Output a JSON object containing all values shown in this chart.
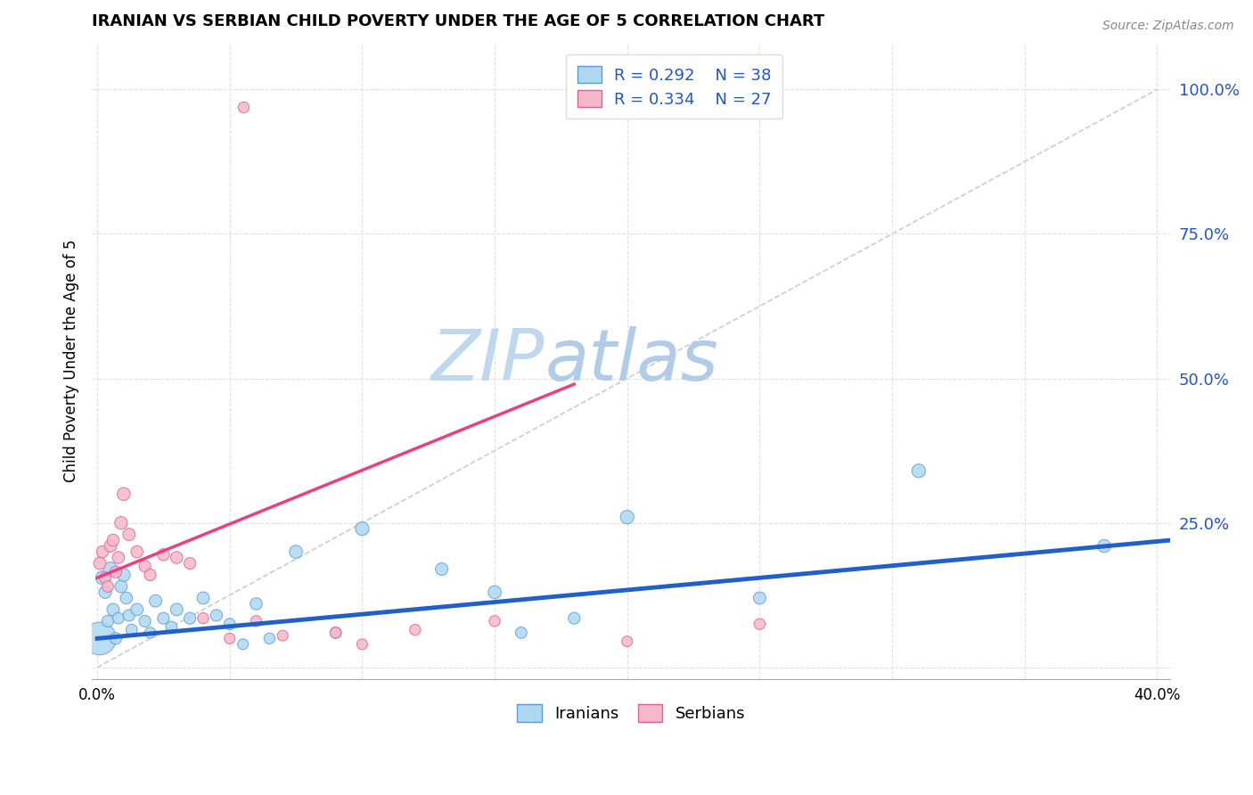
{
  "title": "IRANIAN VS SERBIAN CHILD POVERTY UNDER THE AGE OF 5 CORRELATION CHART",
  "source": "Source: ZipAtlas.com",
  "ylabel": "Child Poverty Under the Age of 5",
  "xlim": [
    -0.002,
    0.405
  ],
  "ylim": [
    -0.02,
    1.08
  ],
  "iranian_R": "0.292",
  "iranian_N": "38",
  "serbian_R": "0.334",
  "serbian_N": "27",
  "iranian_color": "#ADD8F0",
  "serbian_color": "#F5B8C8",
  "iranian_edge_color": "#5B9BD5",
  "serbian_edge_color": "#E06090",
  "iranian_line_color": "#2060C8",
  "serbian_line_color": "#E84080",
  "diagonal_color": "#CCCCCC",
  "legend_text_color": "#2255CC",
  "watermark": "ZIPatlas",
  "iranians_x": [
    0.001,
    0.002,
    0.003,
    0.004,
    0.005,
    0.006,
    0.007,
    0.008,
    0.009,
    0.01,
    0.011,
    0.012,
    0.013,
    0.015,
    0.018,
    0.02,
    0.022,
    0.025,
    0.028,
    0.03,
    0.035,
    0.04,
    0.045,
    0.05,
    0.055,
    0.06,
    0.065,
    0.075,
    0.09,
    0.1,
    0.13,
    0.15,
    0.16,
    0.18,
    0.2,
    0.25,
    0.31,
    0.38
  ],
  "iranians_y": [
    0.05,
    0.155,
    0.13,
    0.08,
    0.17,
    0.1,
    0.05,
    0.085,
    0.14,
    0.16,
    0.12,
    0.09,
    0.065,
    0.1,
    0.08,
    0.06,
    0.115,
    0.085,
    0.07,
    0.1,
    0.085,
    0.12,
    0.09,
    0.075,
    0.04,
    0.11,
    0.05,
    0.2,
    0.06,
    0.24,
    0.17,
    0.13,
    0.06,
    0.085,
    0.26,
    0.12,
    0.34,
    0.21
  ],
  "iranians_size": [
    700,
    120,
    100,
    90,
    130,
    100,
    90,
    85,
    100,
    110,
    95,
    90,
    85,
    100,
    90,
    80,
    100,
    90,
    85,
    100,
    90,
    100,
    90,
    85,
    75,
    95,
    80,
    110,
    85,
    120,
    100,
    110,
    85,
    90,
    120,
    100,
    120,
    110
  ],
  "serbians_x": [
    0.001,
    0.002,
    0.003,
    0.004,
    0.005,
    0.006,
    0.007,
    0.008,
    0.009,
    0.01,
    0.012,
    0.015,
    0.018,
    0.02,
    0.025,
    0.03,
    0.035,
    0.04,
    0.05,
    0.06,
    0.07,
    0.09,
    0.1,
    0.12,
    0.15,
    0.2,
    0.25
  ],
  "serbians_y": [
    0.18,
    0.2,
    0.155,
    0.14,
    0.21,
    0.22,
    0.165,
    0.19,
    0.25,
    0.3,
    0.23,
    0.2,
    0.175,
    0.16,
    0.195,
    0.19,
    0.18,
    0.085,
    0.05,
    0.08,
    0.055,
    0.06,
    0.04,
    0.065,
    0.08,
    0.045,
    0.075
  ],
  "serbians_x_top": [
    0.055
  ],
  "serbians_y_top": [
    0.97
  ],
  "serbians_size": [
    100,
    95,
    90,
    85,
    100,
    95,
    90,
    95,
    105,
    110,
    100,
    95,
    90,
    90,
    95,
    95,
    90,
    80,
    75,
    80,
    75,
    80,
    75,
    80,
    80,
    75,
    80
  ],
  "serbians_top_size": [
    80
  ],
  "iranian_trend_x": [
    0.0,
    0.405
  ],
  "iranian_trend_y": [
    0.05,
    0.22
  ],
  "serbian_trend_x": [
    0.0,
    0.18
  ],
  "serbian_trend_y": [
    0.155,
    0.49
  ],
  "ytick_positions": [
    0.0,
    0.25,
    0.5,
    0.75,
    1.0
  ],
  "ytick_labels": [
    "",
    "25.0%",
    "50.0%",
    "75.0%",
    "100.0%"
  ],
  "xtick_positions": [
    0.0,
    0.05,
    0.1,
    0.15,
    0.2,
    0.25,
    0.3,
    0.35,
    0.4
  ],
  "xtick_labels": [
    "0.0%",
    "",
    "",
    "",
    "",
    "",
    "",
    "",
    "40.0%"
  ]
}
